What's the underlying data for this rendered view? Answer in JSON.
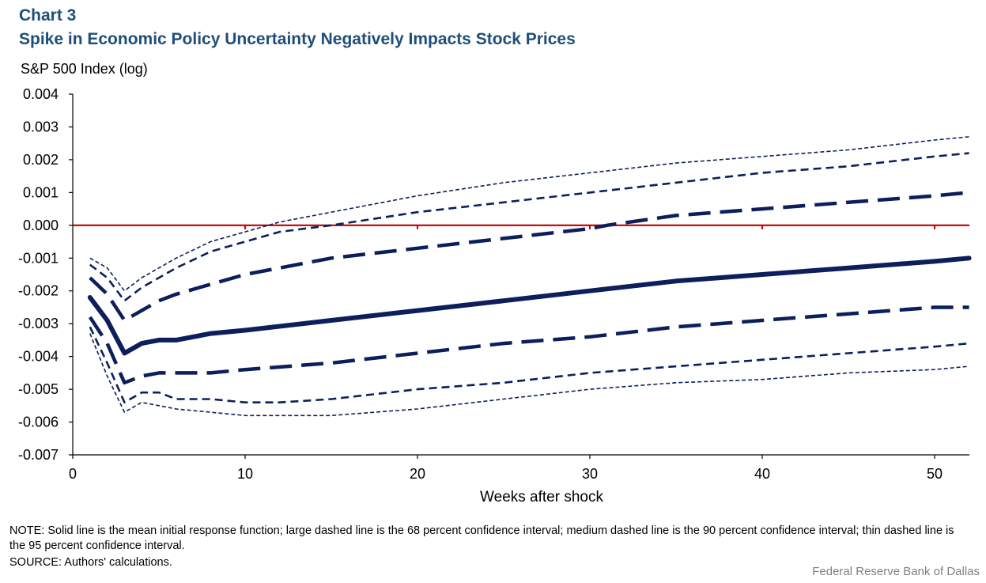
{
  "header": {
    "chart_label": "Chart 3",
    "title": "Spike in Economic Policy Uncertainty Negatively Impacts Stock Prices"
  },
  "footer": {
    "note": "NOTE:  Solid line is the mean initial response function; large dashed line is the 68 percent confidence interval; medium dashed line is the 90 percent confidence interval; thin dashed line is the 95 percent confidence interval.",
    "source": "SOURCE:  Authors' calculations.",
    "credit": "Federal Reserve  Bank of Dallas"
  },
  "colors": {
    "series": "#0c1f5c",
    "zero_line": "#c00000",
    "axis": "#000000",
    "title": "#1f4e79"
  },
  "chart_data": {
    "type": "line",
    "ylabel": "S&P 500 Index (log)",
    "xlabel": "Weeks after shock",
    "xlim": [
      0,
      52
    ],
    "ylim": [
      -0.007,
      0.004
    ],
    "xticks": [
      0,
      10,
      20,
      30,
      40,
      50
    ],
    "yticks": [
      0.004,
      0.003,
      0.002,
      0.001,
      0.0,
      -0.001,
      -0.002,
      -0.003,
      -0.004,
      -0.005,
      -0.006,
      -0.007
    ],
    "ytick_labels": [
      "0.004",
      "0.003",
      "0.002",
      "0.001",
      "0.000",
      "-0.001",
      "-0.002",
      "-0.003",
      "-0.004",
      "-0.005",
      "-0.006",
      "-0.007"
    ],
    "series": [
      {
        "name": "Mean initial response function",
        "style": "solid-thick",
        "x": [
          1,
          2,
          3,
          4,
          5,
          6,
          8,
          10,
          15,
          20,
          25,
          30,
          35,
          40,
          45,
          50,
          52
        ],
        "values": [
          -0.0022,
          -0.0029,
          -0.0039,
          -0.0036,
          -0.0035,
          -0.0035,
          -0.0033,
          -0.0032,
          -0.0029,
          -0.0026,
          -0.0023,
          -0.002,
          -0.0017,
          -0.0015,
          -0.0013,
          -0.0011,
          -0.001
        ]
      },
      {
        "name": "68 percent confidence interval (upper)",
        "style": "dash-large",
        "x": [
          1,
          2,
          3,
          4,
          5,
          6,
          8,
          10,
          15,
          20,
          25,
          30,
          31,
          35,
          40,
          45,
          50,
          52
        ],
        "values": [
          -0.0016,
          -0.0021,
          -0.0029,
          -0.0026,
          -0.0023,
          -0.0021,
          -0.0018,
          -0.0015,
          -0.001,
          -0.0007,
          -0.0004,
          -0.0001,
          0.0,
          0.0003,
          0.0005,
          0.0007,
          0.0009,
          0.001
        ]
      },
      {
        "name": "68 percent confidence interval (lower)",
        "style": "dash-large",
        "x": [
          1,
          2,
          3,
          4,
          5,
          6,
          8,
          10,
          15,
          20,
          25,
          30,
          35,
          40,
          45,
          50,
          52
        ],
        "values": [
          -0.0028,
          -0.0036,
          -0.0048,
          -0.0046,
          -0.0045,
          -0.0045,
          -0.0045,
          -0.0044,
          -0.0042,
          -0.0039,
          -0.0036,
          -0.0034,
          -0.0031,
          -0.0029,
          -0.0027,
          -0.0025,
          -0.0025
        ]
      },
      {
        "name": "90 percent confidence interval (upper)",
        "style": "dash-medium",
        "x": [
          1,
          2,
          3,
          4,
          5,
          6,
          8,
          10,
          12,
          15,
          20,
          25,
          30,
          35,
          40,
          45,
          50,
          52
        ],
        "values": [
          -0.0012,
          -0.0016,
          -0.0023,
          -0.0019,
          -0.0016,
          -0.0013,
          -0.0008,
          -0.0005,
          -0.0002,
          0.0,
          0.0004,
          0.0007,
          0.001,
          0.0013,
          0.0016,
          0.0018,
          0.0021,
          0.0022
        ]
      },
      {
        "name": "90 percent confidence interval (lower)",
        "style": "dash-medium",
        "x": [
          1,
          2,
          3,
          4,
          5,
          6,
          8,
          10,
          12,
          15,
          20,
          25,
          30,
          35,
          40,
          45,
          50,
          52
        ],
        "values": [
          -0.0031,
          -0.0042,
          -0.0054,
          -0.0051,
          -0.0051,
          -0.0053,
          -0.0053,
          -0.0054,
          -0.0054,
          -0.0053,
          -0.005,
          -0.0048,
          -0.0045,
          -0.0043,
          -0.0041,
          -0.0039,
          -0.0037,
          -0.0036
        ]
      },
      {
        "name": "95 percent confidence interval (upper)",
        "style": "dash-thin",
        "x": [
          1,
          2,
          3,
          4,
          5,
          6,
          8,
          10,
          12,
          15,
          20,
          25,
          30,
          35,
          40,
          45,
          50,
          52
        ],
        "values": [
          -0.001,
          -0.0013,
          -0.002,
          -0.0016,
          -0.0013,
          -0.001,
          -0.0005,
          -0.0002,
          0.0001,
          0.0004,
          0.0009,
          0.0013,
          0.0016,
          0.0019,
          0.0021,
          0.0023,
          0.0026,
          0.0027
        ]
      },
      {
        "name": "95 percent confidence interval (lower)",
        "style": "dash-thin",
        "x": [
          1,
          2,
          3,
          4,
          5,
          6,
          8,
          10,
          12,
          15,
          20,
          25,
          30,
          35,
          40,
          45,
          50,
          52
        ],
        "values": [
          -0.0033,
          -0.0046,
          -0.0057,
          -0.0054,
          -0.0055,
          -0.0056,
          -0.0057,
          -0.0058,
          -0.0058,
          -0.0058,
          -0.0056,
          -0.0053,
          -0.005,
          -0.0048,
          -0.0047,
          -0.0045,
          -0.0044,
          -0.0043
        ]
      }
    ]
  }
}
